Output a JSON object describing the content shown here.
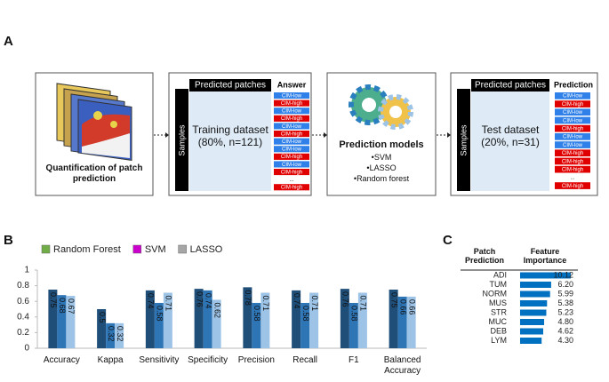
{
  "panel_labels": [
    "A",
    "B",
    "C"
  ],
  "panel_a": {
    "quantification": "Quantification of patch prediction",
    "training": {
      "samples": "Samples",
      "header": "Predicted patches",
      "answer_header": "Answer",
      "dataset": "Training dataset (80%, n=121)",
      "answers": [
        {
          "label": "CIM-low",
          "color": "#2f80e8"
        },
        {
          "label": "CIM-high",
          "color": "#e00000"
        },
        {
          "label": "CIM-low",
          "color": "#2f80e8"
        },
        {
          "label": "CIM-high",
          "color": "#e00000"
        },
        {
          "label": "CIM-low",
          "color": "#2f80e8"
        },
        {
          "label": "CIM-high",
          "color": "#e00000"
        },
        {
          "label": "CIM-low",
          "color": "#2f80e8"
        },
        {
          "label": "CIM-low",
          "color": "#2f80e8"
        },
        {
          "label": "CIM-high",
          "color": "#e00000"
        },
        {
          "label": "CIM-low",
          "color": "#2f80e8"
        },
        {
          "label": "CIM-high",
          "color": "#e00000"
        },
        {
          "label": "..."
        },
        {
          "label": "CIM-high",
          "color": "#e00000"
        }
      ]
    },
    "models": {
      "title": "Prediction models",
      "items": [
        "SVM",
        "LASSO",
        "Random forest"
      ]
    },
    "test": {
      "samples": "Samples",
      "header": "Predicted patches",
      "prediction_header": "Prediction",
      "dataset": "Test dataset (20%, n=31)",
      "predictions": [
        {
          "label": "CIM-low",
          "color": "#2f80e8"
        },
        {
          "label": "CIM-high",
          "color": "#e00000"
        },
        {
          "label": "CIM-low",
          "color": "#2f80e8"
        },
        {
          "label": "CIM-low",
          "color": "#2f80e8"
        },
        {
          "label": "CIM-high",
          "color": "#e00000"
        },
        {
          "label": "CIM-low",
          "color": "#2f80e8"
        },
        {
          "label": "CIM-low",
          "color": "#2f80e8"
        },
        {
          "label": "CIM-high",
          "color": "#e00000"
        },
        {
          "label": "CIM-high",
          "color": "#e00000"
        },
        {
          "label": "CIM-high",
          "color": "#e00000"
        },
        {
          "label": "..."
        },
        {
          "label": "CIM-high",
          "color": "#e00000"
        }
      ]
    }
  },
  "chart_data": [
    {
      "type": "bar",
      "categories": [
        "Accuracy",
        "Kappa",
        "Sensitivity",
        "Specificity",
        "Precision",
        "Recall",
        "F1",
        "Balanced Accuracy"
      ],
      "series": [
        {
          "name": "Random Forest",
          "color": "#1f4e79",
          "legend_color": "#70ad47",
          "values": [
            0.75,
            0.5,
            0.74,
            0.76,
            0.78,
            0.74,
            0.76,
            0.75
          ]
        },
        {
          "name": "SVM",
          "color": "#2e75b6",
          "legend_color": "#cc00cc",
          "values": [
            0.68,
            0.32,
            0.58,
            0.74,
            0.58,
            0.58,
            0.58,
            0.66
          ]
        },
        {
          "name": "LASSO",
          "color": "#9dc3e6",
          "legend_color": "#a6a6a6",
          "values": [
            0.67,
            0.32,
            0.71,
            0.62,
            0.71,
            0.71,
            0.71,
            0.66
          ]
        }
      ],
      "ylim": [
        0,
        1
      ],
      "yticks": [
        0,
        0.2,
        0.4,
        0.6,
        0.8,
        1
      ],
      "grid": false,
      "legend": "top-left"
    },
    {
      "type": "hbar",
      "headers": [
        "Patch Prediction",
        "Feature Importance"
      ],
      "categories": [
        "ADI",
        "TUM",
        "NORM",
        "MUS",
        "STR",
        "MUC",
        "DEB",
        "LYM"
      ],
      "values": [
        10.12,
        6.2,
        5.99,
        5.38,
        5.23,
        4.8,
        4.62,
        4.3
      ],
      "value_labels": [
        "10.12",
        "6.20",
        "5.99",
        "5.38",
        "5.23",
        "4.80",
        "4.62",
        "4.30"
      ],
      "color": "#0070c0"
    }
  ]
}
